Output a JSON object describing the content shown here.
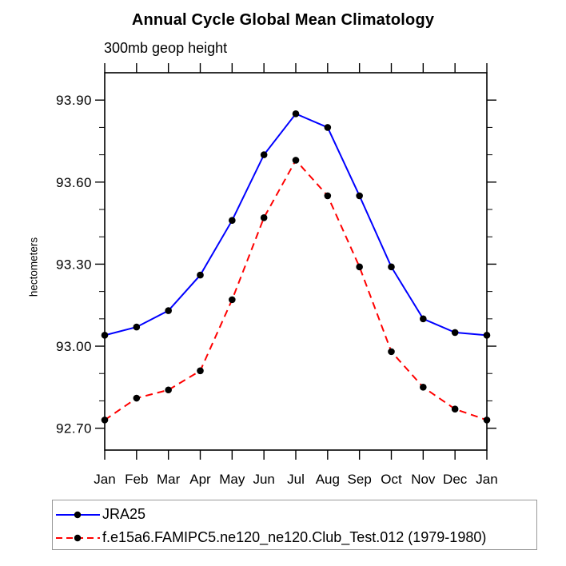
{
  "chart_data": {
    "type": "line",
    "title": "Annual Cycle Global Mean Climatology",
    "subtitle": "300mb geop height",
    "ylabel": "hectometers",
    "categories": [
      "Jan",
      "Feb",
      "Mar",
      "Apr",
      "May",
      "Jun",
      "Jul",
      "Aug",
      "Sep",
      "Oct",
      "Nov",
      "Dec",
      "Jan"
    ],
    "series": [
      {
        "name": "JRA25",
        "color": "#0000ff",
        "line_style": "solid",
        "marker": "filled-circle",
        "marker_color": "#000000",
        "values": [
          93.04,
          93.07,
          93.13,
          93.26,
          93.46,
          93.7,
          93.85,
          93.8,
          93.55,
          93.29,
          93.1,
          93.05,
          93.04
        ]
      },
      {
        "name": "f.e15a6.FAMIPC5.ne120_ne120.Club_Test.012 (1979-1980)",
        "color": "#ff0000",
        "line_style": "dashed",
        "marker": "filled-circle",
        "marker_color": "#000000",
        "values": [
          92.73,
          92.81,
          92.84,
          92.91,
          93.17,
          93.47,
          93.68,
          93.55,
          93.29,
          92.98,
          92.85,
          92.77,
          92.73
        ]
      }
    ],
    "y_ticks": [
      93.9,
      93.6,
      93.3,
      93.0,
      92.7
    ],
    "y_tick_labels": [
      "93.90",
      "93.60",
      "93.30",
      "93.00",
      "92.70"
    ],
    "y_minor_tick_step": 0.1,
    "ylim": [
      92.62,
      94.0
    ],
    "xlabel": "",
    "grid": false,
    "legend_position": "bottom-left",
    "axis_color": "#000000",
    "text_color": "#000000",
    "background_color": "#ffffff"
  }
}
